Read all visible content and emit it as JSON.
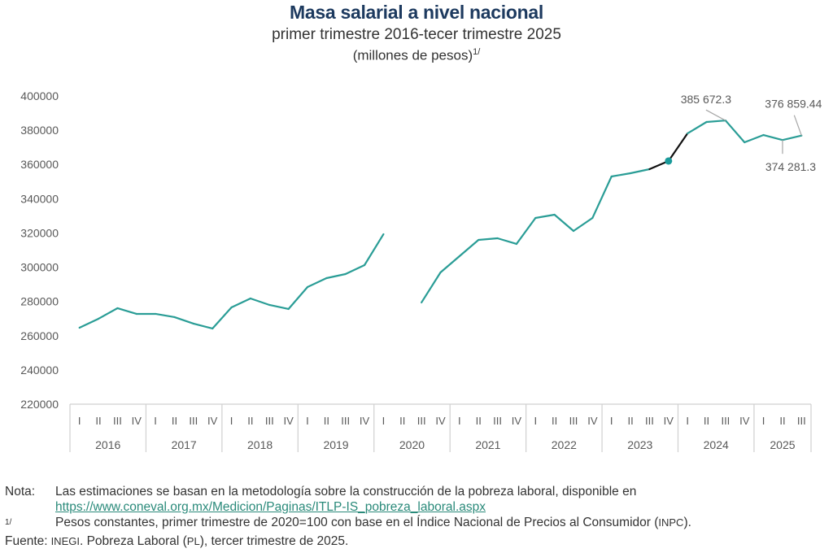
{
  "header": {
    "title": "Masa salarial a nivel nacional",
    "subtitle": "primer trimestre 2016-tecer trimestre 2025",
    "units": "(millones de pesos)",
    "units_footnote": "1/"
  },
  "chart_data": {
    "type": "line",
    "title": "Masa salarial a nivel nacional",
    "subtitle": "primer trimestre 2016-tecer trimestre 2025",
    "ylabel": "millones de pesos",
    "xlabel": "",
    "ylim": [
      220000,
      400000
    ],
    "yticks": [
      220000,
      240000,
      260000,
      280000,
      300000,
      320000,
      340000,
      360000,
      380000,
      400000
    ],
    "ytick_labels": [
      "220000",
      "240000",
      "260000",
      "280000",
      "300000",
      "320000",
      "340000",
      "360000",
      "380000",
      "400000"
    ],
    "grid": false,
    "legend": "none",
    "years": [
      {
        "label": "2016",
        "quarters": [
          "I",
          "II",
          "III",
          "IV"
        ]
      },
      {
        "label": "2017",
        "quarters": [
          "I",
          "II",
          "III",
          "IV"
        ]
      },
      {
        "label": "2018",
        "quarters": [
          "I",
          "II",
          "III",
          "IV"
        ]
      },
      {
        "label": "2019",
        "quarters": [
          "I",
          "II",
          "III",
          "IV"
        ]
      },
      {
        "label": "2020",
        "quarters": [
          "I",
          "II",
          "III",
          "IV"
        ]
      },
      {
        "label": "2021",
        "quarters": [
          "I",
          "II",
          "III",
          "IV"
        ]
      },
      {
        "label": "2022",
        "quarters": [
          "I",
          "II",
          "III",
          "IV"
        ]
      },
      {
        "label": "2023",
        "quarters": [
          "I",
          "II",
          "III",
          "IV"
        ]
      },
      {
        "label": "2024",
        "quarters": [
          "I",
          "II",
          "III",
          "IV"
        ]
      },
      {
        "label": "2025",
        "quarters": [
          "I",
          "II",
          "III"
        ]
      }
    ],
    "series": [
      {
        "name": "Masa salarial",
        "color": "#2a9d96",
        "values": [
          264650,
          269880,
          276050,
          272730,
          272730,
          270830,
          267030,
          264180,
          276530,
          281750,
          277950,
          275580,
          288400,
          293620,
          295990,
          301220,
          319270,
          null,
          279380,
          296940,
          306440,
          315940,
          316890,
          313570,
          328770,
          330660,
          321170,
          328770,
          352990,
          354880,
          357260,
          362010,
          378150,
          384800,
          385672.3,
          372930,
          377200,
          374281.3,
          376859.44
        ]
      }
    ],
    "highlight": {
      "segment_color": "#111111",
      "segment_from_index": 30,
      "segment_to_index": 32,
      "marker_index": 31,
      "marker_color": "#1a9a9a"
    },
    "annotations": [
      {
        "index": 34,
        "text": "385 672.3",
        "position": "above-left"
      },
      {
        "index": 37,
        "text": "374 281.3",
        "position": "below"
      },
      {
        "index": 38,
        "text": "376 859.44",
        "position": "above"
      }
    ]
  },
  "notes": {
    "nota_label": "Nota:",
    "nota_text": "Las estimaciones se basan en la metodología sobre la construcción de la pobreza laboral, disponible en",
    "nota_link": "https://www.coneval.org.mx/Medicion/Paginas/ITLP-IS_pobreza_laboral.aspx",
    "footnote_label": "1/",
    "footnote_text": "Pesos constantes, primer trimestre de 2020=100 con base en el Índice Nacional de Precios al Consumidor (",
    "footnote_abbr": "INPC",
    "footnote_end": ").",
    "fuente_label": "Fuente:",
    "fuente_org": "INEGI",
    "fuente_text": ". Pobreza Laboral (",
    "fuente_abbr": "PL",
    "fuente_end": "), tercer trimestre de 2025."
  }
}
